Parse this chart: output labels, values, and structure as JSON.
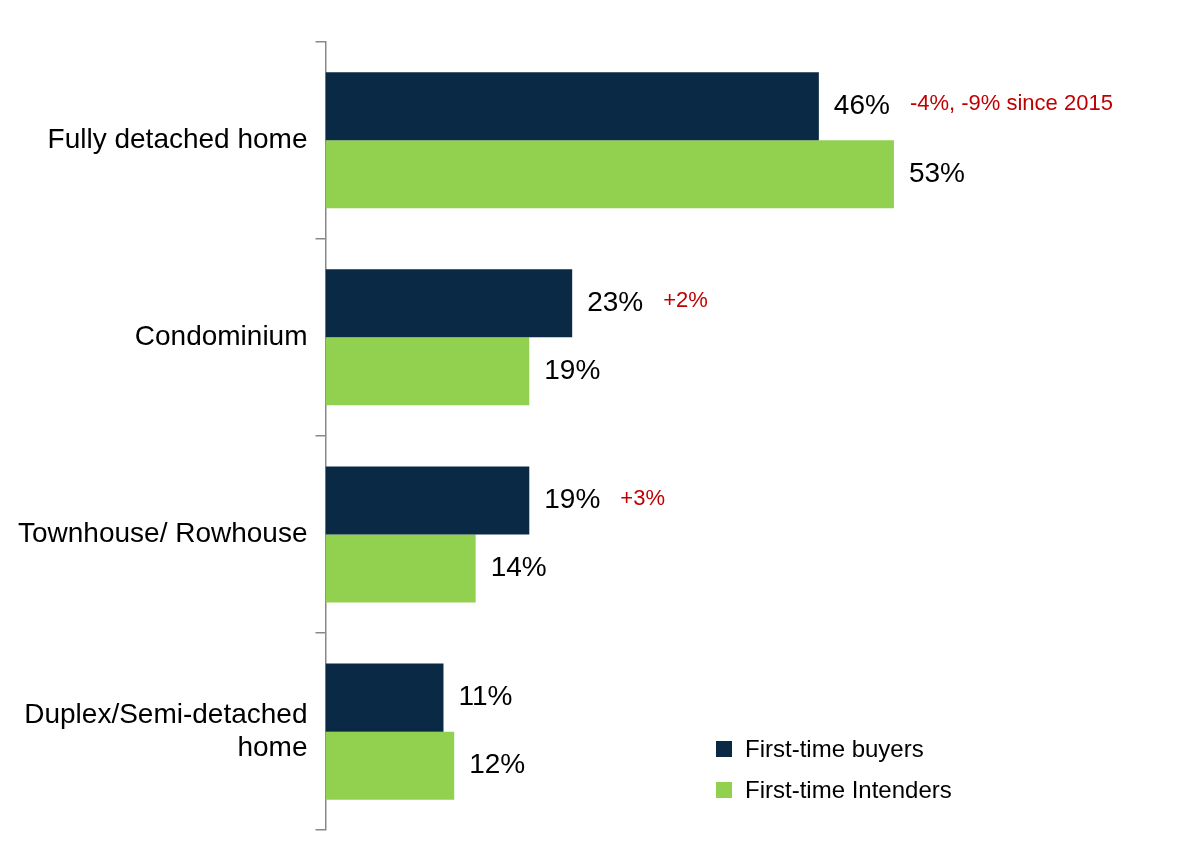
{
  "chart_data": {
    "type": "bar",
    "orientation": "horizontal",
    "categories": [
      "Fully detached home",
      "Condominium",
      "Townhouse/ Rowhouse",
      "Duplex/Semi-detached home"
    ],
    "series": [
      {
        "name": "First-time buyers",
        "color": "#0a2944",
        "values": [
          46,
          23,
          19,
          11
        ],
        "value_labels": [
          "46%",
          "23%",
          "19%",
          "11%"
        ]
      },
      {
        "name": "First-time Intenders",
        "color": "#92d050",
        "values": [
          53,
          19,
          14,
          12
        ],
        "value_labels": [
          "53%",
          "19%",
          "14%",
          "12%"
        ]
      }
    ],
    "annotations": [
      "-4%, -9% since 2015",
      "+2%",
      "+3%"
    ],
    "grid": false,
    "legend": "bottom right"
  }
}
